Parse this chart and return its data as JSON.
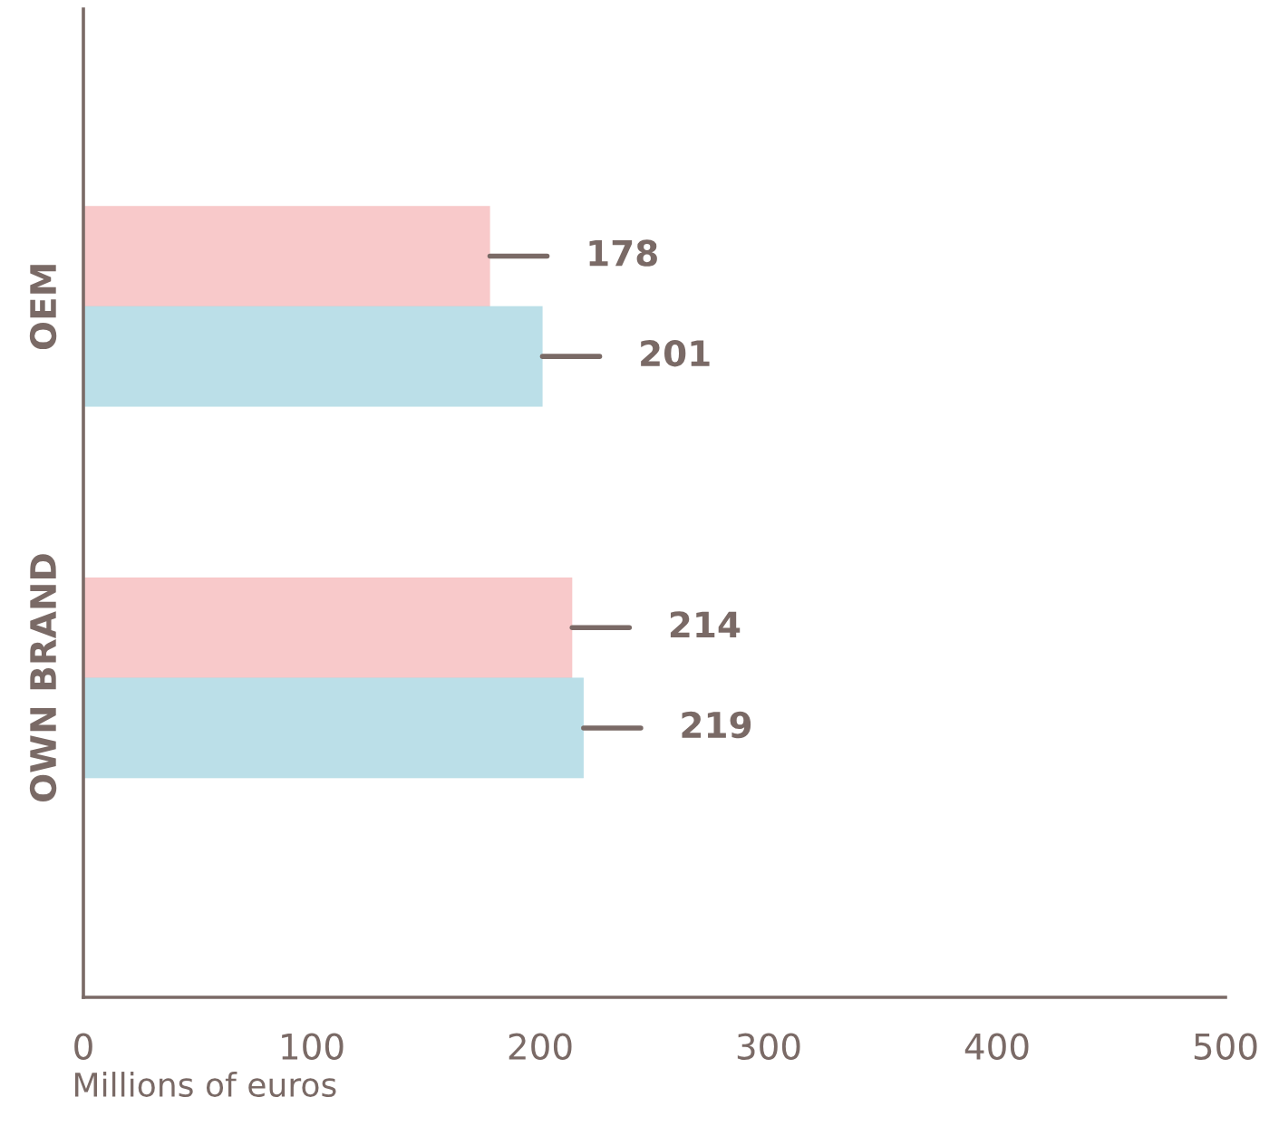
{
  "chart_data": {
    "type": "bar",
    "orientation": "horizontal",
    "xlabel": "Millions of euros",
    "categories": [
      "OEM",
      "OWN BRAND"
    ],
    "series": [
      {
        "color": "#e8575a",
        "values": [
          178,
          214
        ]
      },
      {
        "color": "#2a9ab8",
        "values": [
          201,
          219
        ]
      }
    ],
    "xlim": [
      0,
      500
    ],
    "xticks": [
      0,
      100,
      200,
      300,
      400,
      500
    ],
    "data_labels": true,
    "grid": false,
    "legend": false
  }
}
